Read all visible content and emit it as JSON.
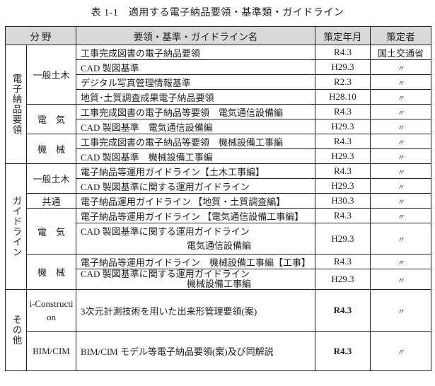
{
  "title": "表 1-1　適用する電子納品要領・基準類・ガイドライン",
  "header": {
    "field": "分 野",
    "name": "要領・基準・ガイドライン名",
    "date": "策定年月",
    "maker": "策定者"
  },
  "ditto": "〃",
  "groups": {
    "denshi": "電子納品要領",
    "guide": "ガイドライン",
    "other": "その他"
  },
  "sub": {
    "ippan": "一般土木",
    "denki": "電　気",
    "kikai": "機　械",
    "kyotsu": "共通",
    "icon": "i-Construction",
    "bim": "BIM/CIM"
  },
  "rows": [
    {
      "name": "工事完成図書の電子納品要領",
      "date": "R4.3",
      "maker": "国土交通省"
    },
    {
      "name": "CAD 製図基準",
      "date": "H29.3"
    },
    {
      "name": "デジタル写真管理情報基準",
      "date": "R2.3"
    },
    {
      "name": "地質･土質調査成果電子納品要領",
      "date": "H28.10"
    },
    {
      "name": "工事完成図書の電子納品等要領　電気通信設備編",
      "date": "R4.3"
    },
    {
      "name": "CAD 製図基準　電気通信設備編",
      "date": "H29.3"
    },
    {
      "name": "工事完成図書の電子納品等要領　機械設備工事編",
      "date": "R4.3"
    },
    {
      "name": "CAD 製図基準　機械設備工事編",
      "date": "H29.3"
    },
    {
      "name": "電子納品等運用ガイドライン【土木工事編】",
      "date": "R4.3"
    },
    {
      "name": "CAD 製図基準に関する運用ガイドライン",
      "date": "H29.3"
    },
    {
      "name": "電子納品運用ガイドライン 【地質・土質調査編】",
      "date": "H30.3"
    },
    {
      "name": "電子納品等運用ガイドライン 【電気通信設備工事編】",
      "date": "R4.3"
    },
    {
      "name": "CAD 製図基準に関する運用ガイドライン",
      "name2": "電気通信設備編",
      "date": "H29.3"
    },
    {
      "name": "電子納品等運用ガイドライン　機械設備工事編【工事】",
      "date": "R4.3"
    },
    {
      "name": "CAD 製図基準に関する運用ガイドライン",
      "name2": "機械設備工事編",
      "date": "H29.3"
    },
    {
      "name": "3次元計測技術を用いた出来形管理要領(案)",
      "date": "R4.3"
    },
    {
      "name": "BIM/CIM モデル等電子納品要領(案)及び同解説",
      "date": "R4.3"
    }
  ]
}
